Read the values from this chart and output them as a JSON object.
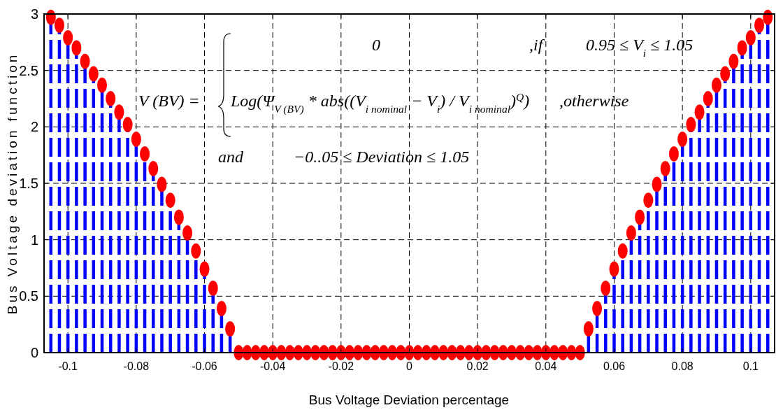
{
  "chart_data": {
    "type": "lollipop",
    "xlabel": "Bus Voltage Deviation percentage",
    "ylabel": "Bus Voltage deviation function",
    "x": [
      -0.105,
      -0.1025,
      -0.1,
      -0.0975,
      -0.095,
      -0.0925,
      -0.09,
      -0.0875,
      -0.085,
      -0.0825,
      -0.08,
      -0.0775,
      -0.075,
      -0.0725,
      -0.07,
      -0.0675,
      -0.065,
      -0.0625,
      -0.06,
      -0.0575,
      -0.055,
      -0.0525,
      -0.05,
      -0.0475,
      -0.045,
      -0.0425,
      -0.04,
      -0.0375,
      -0.035,
      -0.0325,
      -0.03,
      -0.0275,
      -0.025,
      -0.0225,
      -0.02,
      -0.0175,
      -0.015,
      -0.0125,
      -0.01,
      -0.0075,
      -0.005,
      -0.0025,
      0,
      0.0025,
      0.005,
      0.0075,
      0.01,
      0.0125,
      0.015,
      0.0175,
      0.02,
      0.0225,
      0.025,
      0.0275,
      0.03,
      0.0325,
      0.035,
      0.0375,
      0.04,
      0.0425,
      0.045,
      0.0475,
      0.05,
      0.0525,
      0.055,
      0.0575,
      0.06,
      0.0625,
      0.065,
      0.0675,
      0.07,
      0.0725,
      0.075,
      0.0775,
      0.08,
      0.0825,
      0.085,
      0.0875,
      0.09,
      0.0925,
      0.095,
      0.0975,
      0.1,
      0.1025,
      0.105
    ],
    "series": [
      {
        "color": "#ff0000",
        "values": [
          2.97,
          2.9,
          2.79,
          2.7,
          2.58,
          2.47,
          2.37,
          2.25,
          2.13,
          2.02,
          1.89,
          1.76,
          1.63,
          1.49,
          1.35,
          1.2,
          1.06,
          0.9,
          0.74,
          0.57,
          0.39,
          0.21,
          0,
          0,
          0,
          0,
          0,
          0,
          0,
          0,
          0,
          0,
          0,
          0,
          0,
          0,
          0,
          0,
          0,
          0,
          0,
          0,
          0,
          0,
          0,
          0,
          0,
          0,
          0,
          0,
          0,
          0,
          0,
          0,
          0,
          0,
          0,
          0,
          0,
          0,
          0,
          0,
          0,
          0.21,
          0.39,
          0.57,
          0.74,
          0.9,
          1.06,
          1.2,
          1.35,
          1.49,
          1.63,
          1.76,
          1.89,
          2.02,
          2.13,
          2.25,
          2.37,
          2.47,
          2.58,
          2.7,
          2.79,
          2.9,
          2.97
        ]
      }
    ],
    "xlim": [
      -0.107,
      0.107
    ],
    "xticks": [
      -0.1,
      -0.08,
      -0.06,
      -0.04,
      -0.02,
      0,
      0.02,
      0.04,
      0.06,
      0.08,
      0.1
    ],
    "ylim": [
      0,
      3
    ],
    "yticks": [
      0,
      0.5,
      1,
      1.5,
      2,
      2.5,
      3
    ],
    "grid": true,
    "marker": "circle",
    "line_style": "dashed",
    "annotations": [
      "V (BV) =",
      "0",
      ",if",
      "0.95 ≤ V$_{i}$ ≤ 1.05",
      "Log(Ψ$_{V (BV)}$ * abs((V$_{i nominal}$ − V$_{i}$) / V$_{i nominal}$)$^{Q}$)",
      ",otherwise",
      "and",
      "−0..05 ≤ Deviation ≤ 1.05"
    ]
  }
}
